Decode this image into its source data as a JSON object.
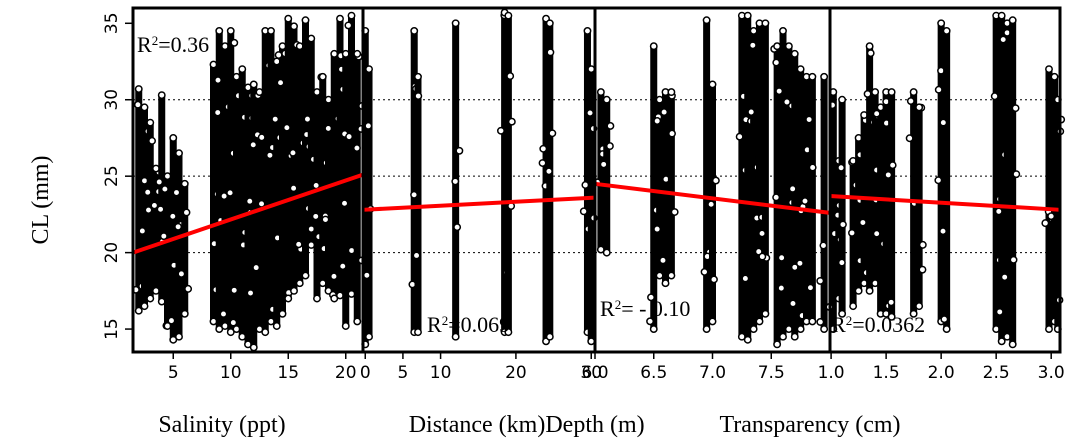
{
  "chart_data": [
    {
      "type": "scatter",
      "xlabel": "Salinity (ppt)",
      "ylabel": "CL (mm)",
      "xlim": [
        1.5,
        21.5
      ],
      "ylim": [
        13.5,
        36
      ],
      "x_ticks": [
        5,
        10,
        15,
        20
      ],
      "y_ticks": [
        15,
        20,
        25,
        30,
        35
      ],
      "r2_label": "R²=0.36",
      "r2_value": "0.36",
      "r2_placement": "top-left",
      "grid": "dotted horizontal at 20, 25, 30",
      "trend": [
        [
          1.5,
          20.0
        ],
        [
          21.5,
          25.1
        ]
      ],
      "columns": [
        [
          2,
          16.2,
          30.7
        ],
        [
          2.5,
          16.5,
          29.5
        ],
        [
          3,
          17.0,
          28.5
        ],
        [
          3.5,
          17.5,
          25.5
        ],
        [
          4,
          16.8,
          30.3
        ],
        [
          4.5,
          15.2,
          25.0
        ],
        [
          5,
          14.3,
          27.5
        ],
        [
          5.5,
          14.5,
          26.5
        ],
        [
          6,
          16.0,
          24.5
        ],
        [
          8.5,
          15.5,
          32.3
        ],
        [
          9,
          15.0,
          34.5
        ],
        [
          9.5,
          15.2,
          33.5
        ],
        [
          10,
          14.8,
          34.5
        ],
        [
          10.5,
          15.0,
          31.5
        ],
        [
          11,
          14.5,
          32.0
        ],
        [
          11.5,
          14.0,
          30.8
        ],
        [
          12,
          13.8,
          31.0
        ],
        [
          12.5,
          15.0,
          30.5
        ],
        [
          13,
          14.8,
          34.5
        ],
        [
          13.5,
          15.5,
          34.5
        ],
        [
          14,
          15.2,
          32.5
        ],
        [
          14.5,
          16.0,
          33.5
        ],
        [
          15,
          17.0,
          35.3
        ],
        [
          15.5,
          17.5,
          34.8
        ],
        [
          16,
          18.0,
          33.5
        ],
        [
          16.5,
          18.5,
          35.2
        ],
        [
          17,
          20.5,
          34.0
        ],
        [
          17.5,
          17.0,
          30.5
        ],
        [
          18,
          18.0,
          31.5
        ],
        [
          18.5,
          17.5,
          30.0
        ],
        [
          19,
          17.0,
          33.0
        ],
        [
          19.5,
          17.2,
          35.3
        ],
        [
          20,
          15.2,
          33.0
        ],
        [
          20.5,
          17.3,
          35.5
        ],
        [
          21,
          15.5,
          33.0
        ]
      ]
    },
    {
      "type": "scatter",
      "xlabel": "Distance (km)",
      "ylabel": "CL (mm)",
      "xlim": [
        -0.3,
        30.5
      ],
      "ylim": [
        13.5,
        36
      ],
      "x_ticks": [
        0,
        5,
        10,
        20,
        30
      ],
      "x_tick_labels": [
        "0",
        "5",
        "10",
        "20",
        "30"
      ],
      "y_ticks": [
        15,
        20,
        25,
        30,
        35
      ],
      "r2_label": "R²=0.069",
      "r2_value": "0.069",
      "r2_placement": "bottom-center",
      "grid": "dotted horizontal at 20, 25, 30",
      "trend": [
        [
          -0.3,
          22.8
        ],
        [
          30.5,
          23.6
        ]
      ],
      "columns": [
        [
          0,
          14.0,
          34.5
        ],
        [
          0.5,
          14.5,
          32.0
        ],
        [
          6.5,
          14.8,
          34.5
        ],
        [
          7,
          14.8,
          31.5
        ],
        [
          12,
          14.5,
          35.0
        ],
        [
          18.5,
          14.8,
          35.7
        ],
        [
          19,
          14.8,
          35.5
        ],
        [
          24,
          14.2,
          35.3
        ],
        [
          24.5,
          14.5,
          35.0
        ],
        [
          29.5,
          14.8,
          34.5
        ],
        [
          30,
          14.2,
          32.0
        ]
      ]
    },
    {
      "type": "scatter",
      "xlabel": "Depth (m)",
      "ylabel": "CL (mm)",
      "xlim": [
        6.0,
        8.0
      ],
      "ylim": [
        13.5,
        36
      ],
      "x_ticks": [
        6.0,
        6.5,
        7.0,
        7.5
      ],
      "x_tick_labels": [
        "6.0",
        "6.5",
        "7.0",
        "7.5"
      ],
      "y_ticks": [
        15,
        20,
        25,
        30,
        35
      ],
      "r2_label": "R²= - 0.10",
      "r2_value": "- 0.10",
      "r2_placement": "bottom-left",
      "grid": "dotted horizontal at 20, 25, 30",
      "trend": [
        [
          6.0,
          24.5
        ],
        [
          8.0,
          22.6
        ]
      ],
      "columns": [
        [
          6.05,
          20.2,
          30.5
        ],
        [
          6.1,
          20.0,
          30.0
        ],
        [
          6.5,
          15.0,
          33.5
        ],
        [
          6.55,
          18.5,
          30.0
        ],
        [
          6.6,
          18.0,
          30.5
        ],
        [
          6.65,
          18.5,
          30.5
        ],
        [
          6.95,
          15.0,
          35.2
        ],
        [
          7.0,
          15.5,
          31.0
        ],
        [
          7.25,
          14.5,
          35.5
        ],
        [
          7.3,
          14.3,
          35.5
        ],
        [
          7.35,
          15.0,
          34.5
        ],
        [
          7.4,
          15.5,
          35.0
        ],
        [
          7.45,
          16.0,
          35.0
        ],
        [
          7.55,
          14.0,
          33.5
        ],
        [
          7.6,
          14.5,
          34.5
        ],
        [
          7.65,
          15.0,
          33.5
        ],
        [
          7.7,
          14.5,
          33.0
        ],
        [
          7.75,
          15.0,
          32.0
        ],
        [
          7.8,
          15.5,
          31.5
        ],
        [
          7.85,
          15.5,
          31.5
        ],
        [
          7.95,
          15.0,
          31.5
        ]
      ]
    },
    {
      "type": "scatter",
      "xlabel": "Transparency (cm)",
      "ylabel": "CL (mm)",
      "xlim": [
        0.99,
        3.08
      ],
      "ylim": [
        13.5,
        36
      ],
      "x_ticks": [
        1.0,
        1.5,
        2.0,
        2.5,
        3.0
      ],
      "x_tick_labels": [
        "1.0",
        "1.5",
        "2.0",
        "2.5",
        "3.0"
      ],
      "y_ticks": [
        15,
        20,
        25,
        30,
        35
      ],
      "r2_label": "R²=0.0362",
      "r2_value": "0.0362",
      "r2_placement": "bottom-left",
      "grid": "dotted horizontal at 20, 25, 30",
      "trend": [
        [
          0.99,
          23.7
        ],
        [
          3.08,
          22.8
        ]
      ],
      "columns": [
        [
          1.02,
          15.0,
          30.5
        ],
        [
          1.07,
          17.0,
          26.0
        ],
        [
          1.1,
          16.0,
          30.0
        ],
        [
          1.2,
          16.5,
          26.0
        ],
        [
          1.25,
          17.5,
          27.5
        ],
        [
          1.3,
          18.0,
          29.0
        ],
        [
          1.35,
          17.5,
          33.5
        ],
        [
          1.4,
          18.0,
          30.5
        ],
        [
          1.45,
          16.0,
          29.5
        ],
        [
          1.5,
          16.0,
          30.5
        ],
        [
          1.55,
          15.8,
          30.5
        ],
        [
          1.75,
          16.0,
          30.5
        ],
        [
          1.8,
          16.5,
          29.5
        ],
        [
          2.0,
          15.5,
          35.0
        ],
        [
          2.05,
          15.0,
          34.5
        ],
        [
          2.5,
          15.0,
          35.5
        ],
        [
          2.55,
          14.2,
          35.5
        ],
        [
          2.6,
          14.5,
          35.0
        ],
        [
          2.65,
          14.0,
          35.2
        ],
        [
          2.98,
          15.0,
          32.0
        ],
        [
          3.03,
          15.5,
          31.5
        ],
        [
          3.06,
          15.0,
          30.0
        ]
      ]
    }
  ]
}
